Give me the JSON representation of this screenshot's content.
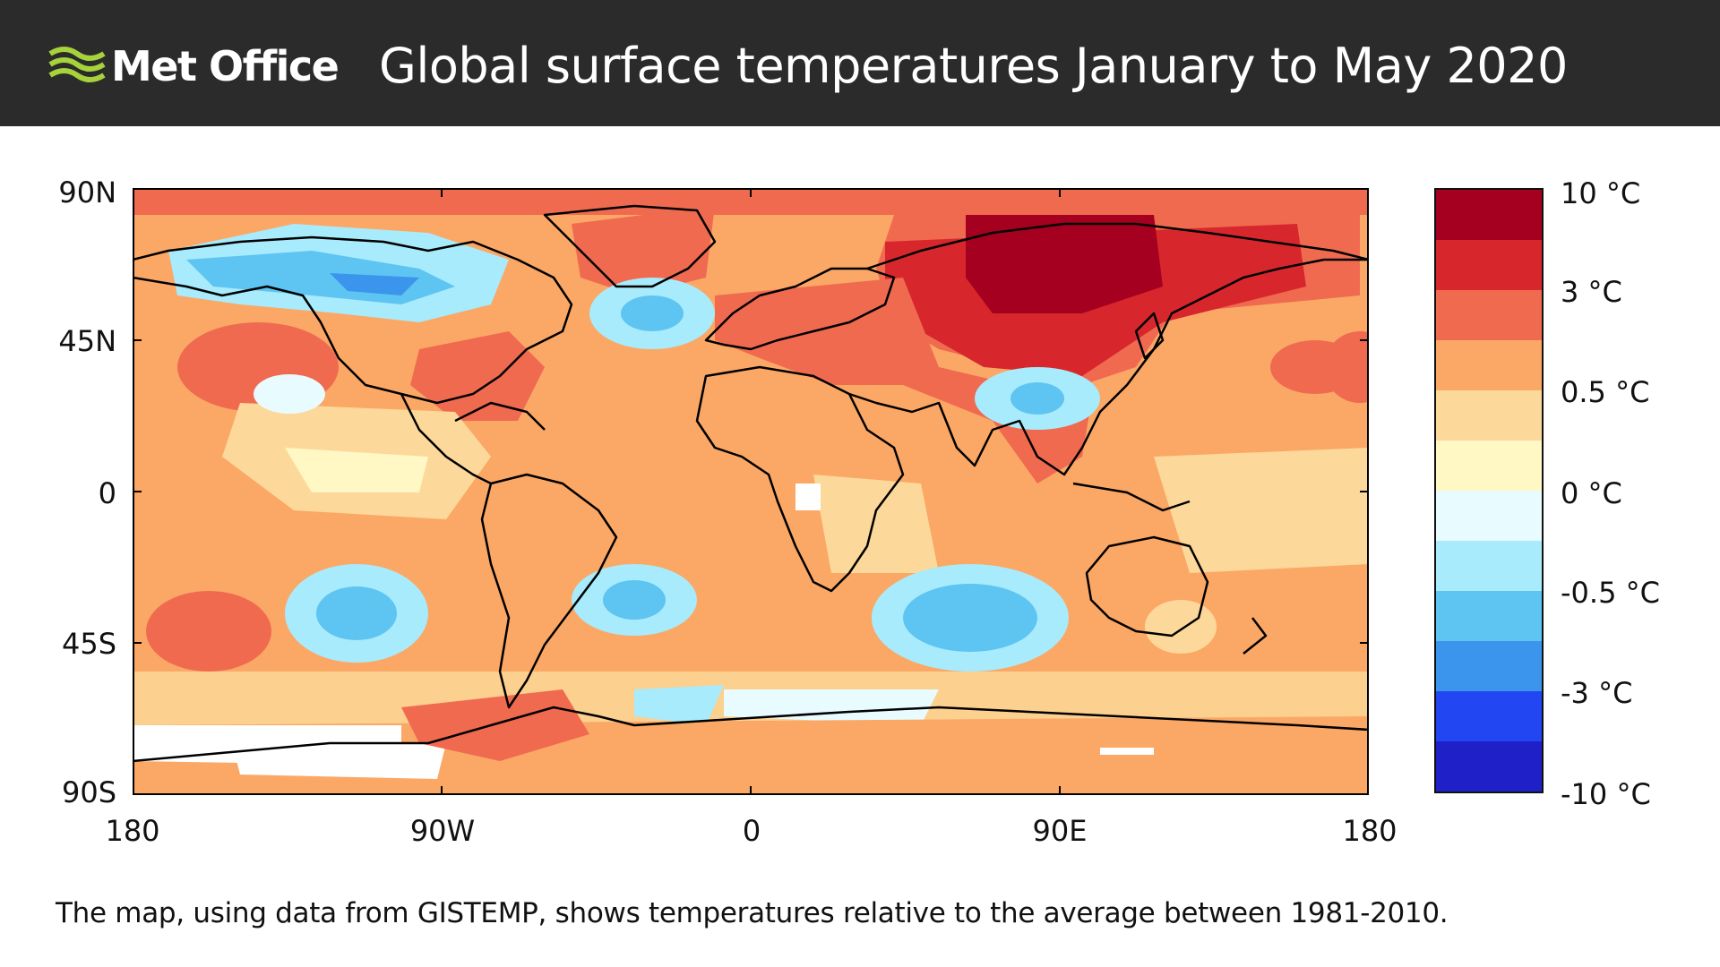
{
  "header": {
    "logo_text": "Met Office",
    "title": "Global surface temperatures January to May 2020"
  },
  "map": {
    "lat_labels": [
      "90N",
      "45N",
      "0",
      "45S",
      "90S"
    ],
    "lon_labels": [
      "180",
      "90W",
      "0",
      "90E",
      "180"
    ]
  },
  "colorbar": {
    "labels": [
      "10 °C",
      "3 °C",
      "0.5 °C",
      "0 °C",
      "-0.5 °C",
      "-3 °C",
      "-10 °C"
    ],
    "colors": [
      "#a50020",
      "#d7272c",
      "#f06a50",
      "#fba866",
      "#fcd99a",
      "#fff7c4",
      "#e8fbff",
      "#a8ebfc",
      "#5ec4f2",
      "#3c95ec",
      "#2146f2",
      "#2020c8"
    ]
  },
  "palette": {
    "land_outline": "#000000",
    "no_data": "#ffffff"
  },
  "caption": "The map, using data from GISTEMP, shows temperatures relative to the average between 1981-2010."
}
